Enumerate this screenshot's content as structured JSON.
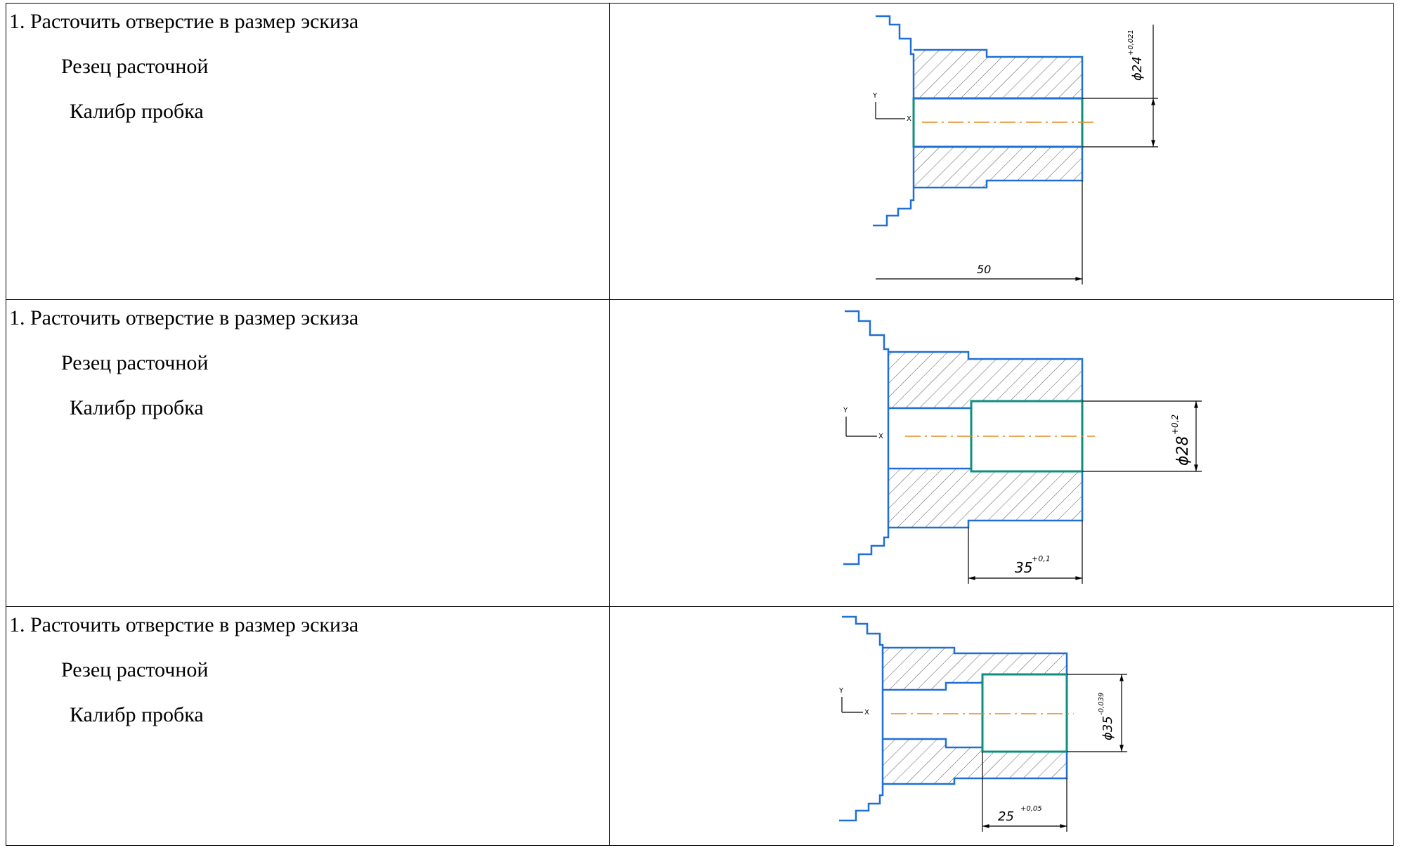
{
  "rows": [
    {
      "operation": "1. Расточить отверстие в размер эскиза",
      "tool": "Резец расточной",
      "gauge": "Калибр пробка",
      "dimensions": {
        "diameter": "ϕ24",
        "diameter_tol": "+0,021",
        "length": "50",
        "length_tol": ""
      }
    },
    {
      "operation": "1. Расточить отверстие в размер эскиза",
      "tool": "Резец расточной",
      "gauge": "Калибр пробка",
      "dimensions": {
        "diameter": "ϕ28",
        "diameter_tol": "+0,2",
        "length": "35",
        "length_tol": "+0,1"
      }
    },
    {
      "operation": "1. Расточить отверстие в размер эскиза",
      "tool": "Резец расточной",
      "gauge": "Калибр пробка",
      "dimensions": {
        "diameter": "ϕ35",
        "diameter_tol": "-0,039",
        "length": "25",
        "length_tol": "+0,05"
      }
    }
  ],
  "axis_labels": {
    "y": "Y",
    "x": "X"
  },
  "colors": {
    "contour": "#1f6fd6",
    "bore": "#0e8f7e",
    "centerline": "#e58a1e"
  }
}
